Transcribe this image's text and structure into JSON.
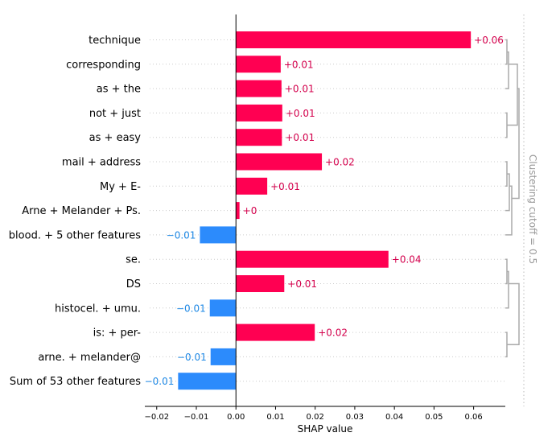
{
  "chart_data": {
    "type": "bar",
    "orientation": "horizontal",
    "xlabel": "SHAP value",
    "xlim": [
      -0.023,
      0.068
    ],
    "xticks": [
      -0.02,
      -0.01,
      0.0,
      0.01,
      0.02,
      0.03,
      0.04,
      0.05,
      0.06
    ],
    "xtick_labels": [
      "−0.02",
      "−0.01",
      "0.00",
      "0.01",
      "0.02",
      "0.03",
      "0.04",
      "0.05",
      "0.06"
    ],
    "grid": false,
    "clustering_label": "Clustering cutoff = 0.5",
    "colors": {
      "positive": "#ff0052",
      "negative": "#2c8bfc",
      "positive_text": "#d4004c",
      "negative_text": "#1e88e5",
      "dendrogram": "#aaaaaa"
    },
    "bars": [
      {
        "feature": "technique",
        "value": 0.0593,
        "label": "+0.06"
      },
      {
        "feature": "corresponding",
        "value": 0.0113,
        "label": "+0.01"
      },
      {
        "feature": "as + the",
        "value": 0.0115,
        "label": "+0.01"
      },
      {
        "feature": "not + just",
        "value": 0.0117,
        "label": "+0.01"
      },
      {
        "feature": "as + easy",
        "value": 0.0116,
        "label": "+0.01"
      },
      {
        "feature": "mail + address",
        "value": 0.0217,
        "label": "+0.02"
      },
      {
        "feature": "My + E-",
        "value": 0.0079,
        "label": "+0.01"
      },
      {
        "feature": "Arne + Melander + Ps.",
        "value": 0.0009,
        "label": "+0"
      },
      {
        "feature": "blood. + 5 other features",
        "value": -0.0091,
        "label": "−0.01"
      },
      {
        "feature": "se.",
        "value": 0.0385,
        "label": "+0.04"
      },
      {
        "feature": "DS",
        "value": 0.0122,
        "label": "+0.01"
      },
      {
        "feature": "histocel. + umu.",
        "value": -0.0066,
        "label": "−0.01"
      },
      {
        "feature": "is: + per-",
        "value": 0.0199,
        "label": "+0.02"
      },
      {
        "feature": "arne. + melander@",
        "value": -0.0064,
        "label": "−0.01"
      },
      {
        "feature": "Sum of 53 other features",
        "value": -0.0146,
        "label": "−0.01"
      }
    ]
  }
}
